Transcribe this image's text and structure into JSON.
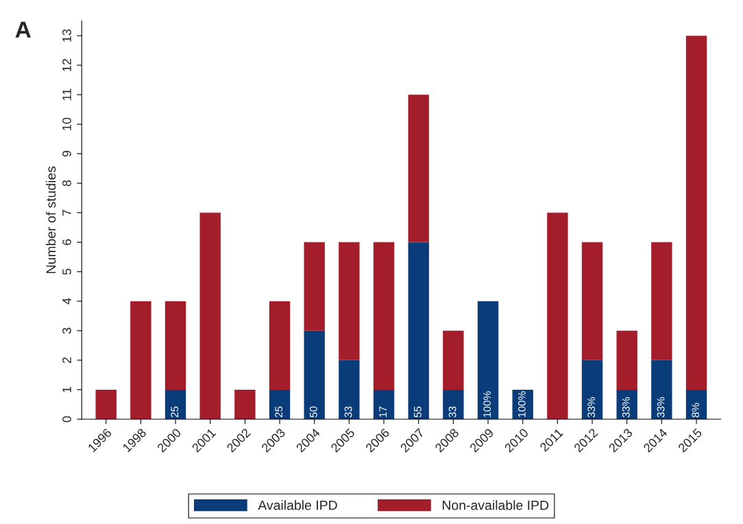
{
  "chart_data": {
    "type": "bar",
    "title": "A",
    "ylabel": "Number of studies",
    "stacked": true,
    "categories": [
      "1996",
      "1998",
      "2000",
      "2001",
      "2002",
      "2003",
      "2004",
      "2005",
      "2006",
      "2007",
      "2008",
      "2009",
      "2010",
      "2011",
      "2012",
      "2013",
      "2014",
      "2015"
    ],
    "series": [
      {
        "name": "Available IPD",
        "color": "#0b3c7a",
        "values": [
          0,
          0,
          1,
          0,
          0,
          1,
          3,
          2,
          1,
          6,
          1,
          4,
          1,
          0,
          2,
          1,
          2,
          1
        ]
      },
      {
        "name": "Non-available IPD",
        "color": "#a31d2b",
        "values": [
          1,
          4,
          3,
          7,
          1,
          3,
          3,
          4,
          5,
          5,
          2,
          0,
          0,
          7,
          4,
          2,
          4,
          12
        ]
      }
    ],
    "ylim": [
      0,
      13.5
    ],
    "yticks": [
      0,
      1,
      2,
      3,
      4,
      5,
      6,
      7,
      8,
      9,
      10,
      11,
      12,
      13
    ],
    "grid": false,
    "legend": "bottom",
    "annotations": [
      {
        "text": "25",
        "x": "2000",
        "y": 0
      },
      {
        "text": "25",
        "x": "2003",
        "y": 0
      },
      {
        "text": "50",
        "x": "2004",
        "y": 0
      },
      {
        "text": "33",
        "x": "2005",
        "y": 0
      },
      {
        "text": "17",
        "x": "2006",
        "y": 0
      },
      {
        "text": "55",
        "x": "2007",
        "y": 0
      },
      {
        "text": "33",
        "x": "2008",
        "y": 0
      },
      {
        "text": "100%",
        "x": "2009",
        "y": 0
      },
      {
        "text": "100%",
        "x": "2010",
        "y": 0
      },
      {
        "text": "33%",
        "x": "2012",
        "y": 0
      },
      {
        "text": "33%",
        "x": "2013",
        "y": 0
      },
      {
        "text": "33%",
        "x": "2014",
        "y": 0
      },
      {
        "text": "8%",
        "x": "2015",
        "y": 0
      }
    ]
  }
}
